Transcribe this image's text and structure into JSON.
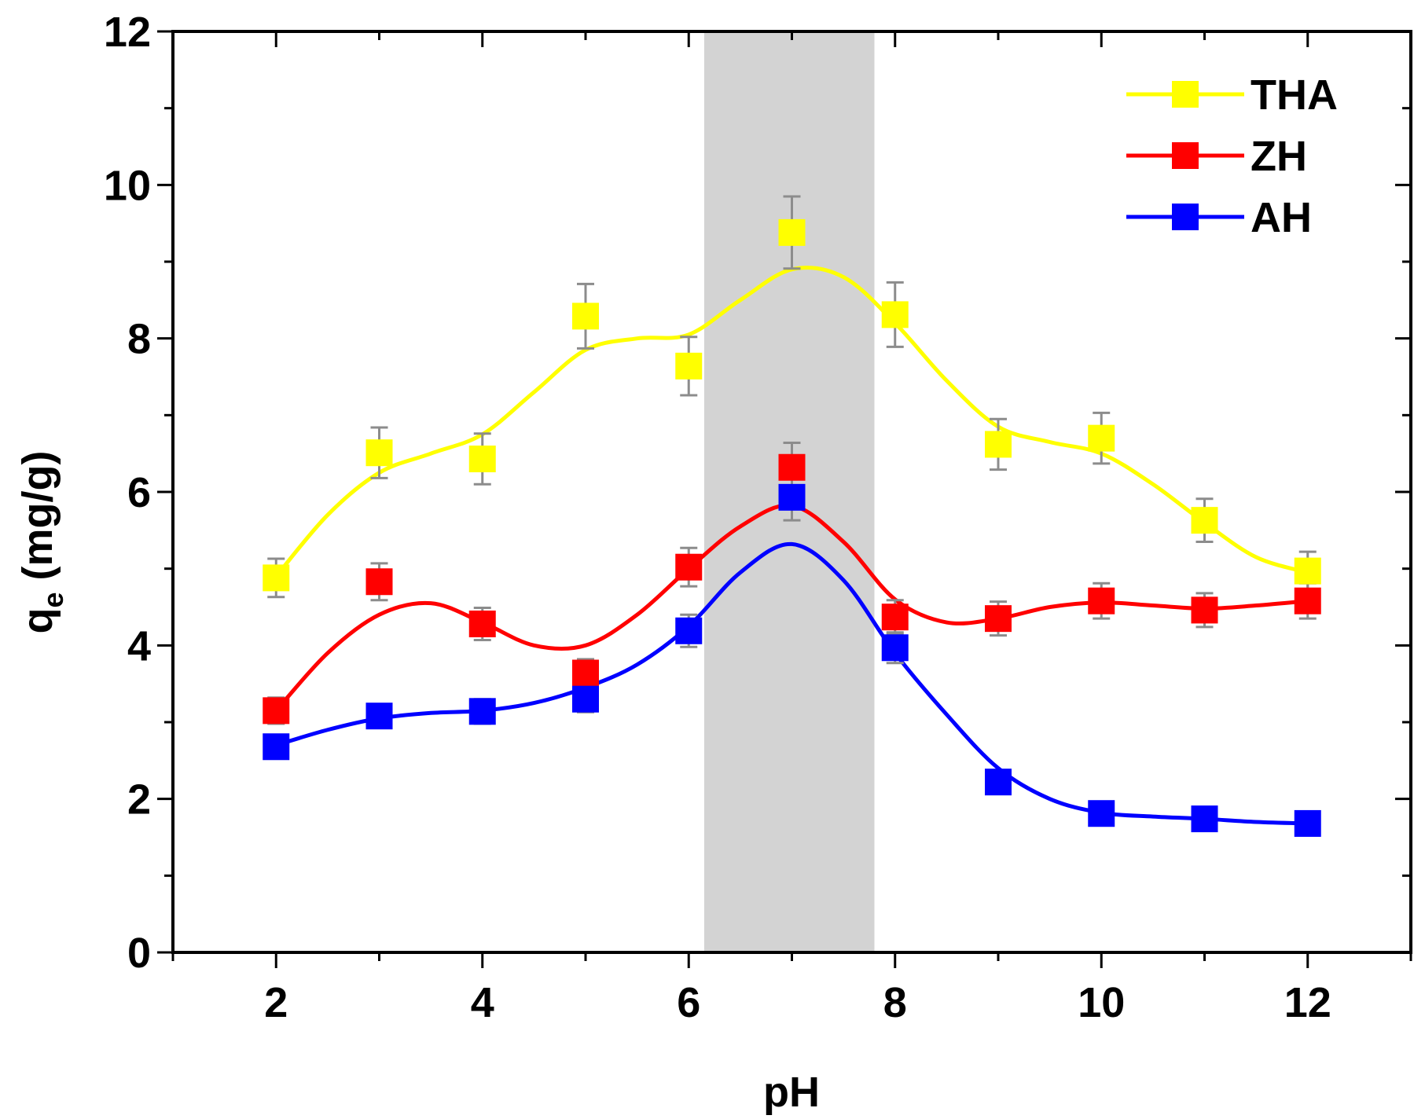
{
  "chart_data": {
    "type": "line",
    "xlabel": "pH",
    "ylabel_main": "q",
    "ylabel_sub": "e",
    "ylabel_unit": " (mg/g)",
    "xlim": [
      1,
      13
    ],
    "ylim": [
      0,
      12
    ],
    "xticks": [
      2,
      4,
      6,
      8,
      10,
      12
    ],
    "yticks": [
      0,
      2,
      4,
      6,
      8,
      10,
      12
    ],
    "shaded_band": {
      "x_start": 6.15,
      "x_end": 7.8,
      "color": "#d3d3d3"
    },
    "legend_position": "top-right",
    "x": [
      2,
      3,
      4,
      5,
      6,
      7,
      8,
      9,
      10,
      11,
      12
    ],
    "series": [
      {
        "name": "THA",
        "color": "#ffff00",
        "values": [
          4.88,
          6.51,
          6.43,
          8.29,
          7.64,
          9.38,
          8.31,
          6.62,
          6.7,
          5.63,
          4.97
        ],
        "errors": [
          0.25,
          0.33,
          0.33,
          0.42,
          0.38,
          0.47,
          0.42,
          0.33,
          0.33,
          0.28,
          0.25
        ],
        "fit": [
          [
            2,
            4.9
          ],
          [
            2.5,
            5.7
          ],
          [
            3,
            6.25
          ],
          [
            3.5,
            6.5
          ],
          [
            4,
            6.75
          ],
          [
            4.5,
            7.3
          ],
          [
            5,
            7.85
          ],
          [
            5.5,
            8.0
          ],
          [
            6,
            8.05
          ],
          [
            6.5,
            8.5
          ],
          [
            7,
            8.9
          ],
          [
            7.5,
            8.8
          ],
          [
            8,
            8.2
          ],
          [
            8.5,
            7.45
          ],
          [
            9,
            6.85
          ],
          [
            9.5,
            6.65
          ],
          [
            10,
            6.5
          ],
          [
            10.5,
            6.1
          ],
          [
            11,
            5.6
          ],
          [
            11.5,
            5.15
          ],
          [
            12,
            4.95
          ]
        ]
      },
      {
        "name": "ZH",
        "color": "#ff0000",
        "values": [
          3.15,
          4.83,
          4.28,
          3.64,
          5.02,
          6.32,
          4.37,
          4.35,
          4.58,
          4.46,
          4.58
        ],
        "errors": [
          0.17,
          0.24,
          0.21,
          0.18,
          0.25,
          0.32,
          0.22,
          0.22,
          0.23,
          0.22,
          0.23
        ],
        "fit": [
          [
            2,
            3.15
          ],
          [
            2.5,
            3.9
          ],
          [
            3,
            4.4
          ],
          [
            3.5,
            4.55
          ],
          [
            4,
            4.3
          ],
          [
            4.5,
            4.0
          ],
          [
            5,
            4.0
          ],
          [
            5.5,
            4.4
          ],
          [
            6,
            5.0
          ],
          [
            6.5,
            5.55
          ],
          [
            7,
            5.82
          ],
          [
            7.5,
            5.35
          ],
          [
            8,
            4.6
          ],
          [
            8.5,
            4.3
          ],
          [
            9,
            4.35
          ],
          [
            9.5,
            4.5
          ],
          [
            10,
            4.56
          ],
          [
            10.5,
            4.52
          ],
          [
            11,
            4.48
          ],
          [
            11.5,
            4.52
          ],
          [
            12,
            4.58
          ]
        ]
      },
      {
        "name": "AH",
        "color": "#0000ff",
        "values": [
          2.68,
          3.08,
          3.14,
          3.3,
          4.19,
          5.93,
          3.97,
          2.22,
          1.81,
          1.74,
          1.68
        ],
        "errors": [
          0.13,
          0.15,
          0.16,
          0.17,
          0.21,
          0.3,
          0.2,
          0.11,
          0.09,
          0.09,
          0.08
        ],
        "fit": [
          [
            2,
            2.7
          ],
          [
            2.5,
            2.9
          ],
          [
            3,
            3.05
          ],
          [
            3.5,
            3.12
          ],
          [
            4,
            3.15
          ],
          [
            4.5,
            3.25
          ],
          [
            5,
            3.45
          ],
          [
            5.5,
            3.75
          ],
          [
            6,
            4.25
          ],
          [
            6.5,
            4.95
          ],
          [
            7,
            5.32
          ],
          [
            7.5,
            4.85
          ],
          [
            8,
            3.9
          ],
          [
            8.5,
            3.1
          ],
          [
            9,
            2.4
          ],
          [
            9.5,
            2.0
          ],
          [
            10,
            1.82
          ],
          [
            10.5,
            1.77
          ],
          [
            11,
            1.74
          ],
          [
            11.5,
            1.7
          ],
          [
            12,
            1.68
          ]
        ]
      }
    ]
  }
}
